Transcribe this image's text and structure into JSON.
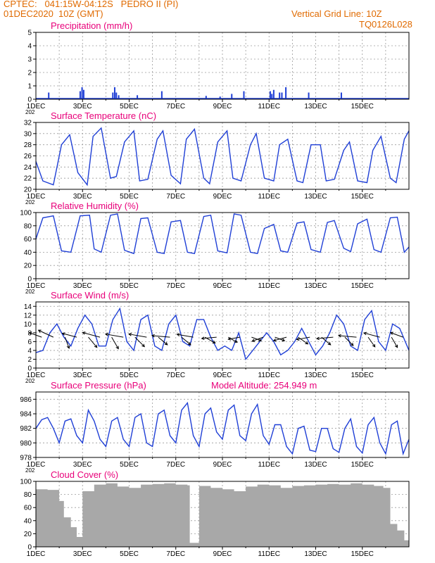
{
  "header": {
    "line1": "CPTEC:   041:15W-04:12S   PEDRO II (PI)",
    "line2": "01DEC2020  10Z (GMT)",
    "grid_note": "Vertical Grid Line: 10Z",
    "code": "TQ0126L028"
  },
  "model_altitude": "Model Altitude: 254.949  m",
  "colors": {
    "header": "#e06a00",
    "title": "#e8007a",
    "series": "#1f3fd6",
    "cloud": "#a8a8a8",
    "arrow": "#000000"
  },
  "x_ticks": [
    "1DEC",
    "3DEC",
    "5DEC",
    "7DEC",
    "9DEC",
    "11DEC",
    "13DEC",
    "15DEC"
  ],
  "year_stub": "202",
  "panels": [
    {
      "id": "precip",
      "title": "Precipitation  (mm/h)",
      "y_ticks": [
        0,
        1,
        2,
        3,
        4,
        5
      ],
      "ylim": [
        0,
        5
      ]
    },
    {
      "id": "temp",
      "title": "Surface Temperature  (nC)",
      "y_ticks": [
        20,
        22,
        24,
        26,
        28,
        30,
        32
      ],
      "ylim": [
        20,
        32
      ]
    },
    {
      "id": "rh",
      "title": "Relative Humidity  (%)",
      "y_ticks": [
        0,
        20,
        40,
        60,
        80,
        100
      ],
      "ylim": [
        0,
        100
      ]
    },
    {
      "id": "wind",
      "title": "Surface Wind  (m/s)",
      "y_ticks": [
        0,
        2,
        4,
        6,
        8,
        10,
        12,
        14
      ],
      "ylim": [
        0,
        15
      ]
    },
    {
      "id": "press",
      "title": "Surface Pressure (hPa)",
      "y_ticks": [
        978,
        980,
        982,
        984,
        986
      ],
      "ylim": [
        978,
        987
      ]
    },
    {
      "id": "cloud",
      "title": "Cloud Cover (%)",
      "y_ticks": [
        0,
        20,
        40,
        60,
        80,
        100
      ],
      "ylim": [
        0,
        100
      ]
    }
  ],
  "chart_data": [
    {
      "type": "bar",
      "title": "Precipitation  (mm/h)",
      "x": [
        0.55,
        1.9,
        1.98,
        2.05,
        3.3,
        3.38,
        3.45,
        3.55,
        4.35,
        5.4,
        7.3,
        7.9,
        8.4,
        8.92,
        10.05,
        10.12,
        10.2,
        10.45,
        10.55,
        10.72,
        11.7,
        13.1
      ],
      "values": [
        0.5,
        0.6,
        0.9,
        0.7,
        0.5,
        0.9,
        0.5,
        0.3,
        0.3,
        0.6,
        0.25,
        0.2,
        0.4,
        0.6,
        0.6,
        0.4,
        0.7,
        0.5,
        0.5,
        0.9,
        0.5,
        0.5
      ],
      "ylim": [
        0,
        5
      ]
    },
    {
      "type": "line",
      "title": "Surface Temperature  (nC)",
      "x": [
        0,
        0.3,
        0.75,
        1.1,
        1.45,
        1.8,
        2.2,
        2.45,
        2.8,
        3.2,
        3.45,
        3.8,
        4.2,
        4.45,
        4.8,
        5.2,
        5.45,
        5.8,
        6.2,
        6.45,
        6.8,
        7.2,
        7.45,
        7.8,
        8.2,
        8.45,
        8.8,
        9.2,
        9.45,
        9.8,
        10.2,
        10.45,
        10.8,
        11.2,
        11.45,
        11.8,
        12.2,
        12.45,
        12.8,
        13.2,
        13.45,
        13.8,
        14.2,
        14.45,
        14.8,
        15.2,
        15.45,
        15.8,
        16
      ],
      "values": [
        25,
        21.5,
        20.8,
        28,
        29.8,
        23,
        20.8,
        29.5,
        31,
        22,
        22.3,
        28.5,
        30.5,
        21.5,
        21.8,
        29,
        30.5,
        22.5,
        21,
        29,
        30.8,
        22,
        21,
        28.5,
        30.5,
        22,
        21.5,
        28,
        30,
        22,
        21.5,
        28,
        29,
        21.5,
        21.2,
        28,
        28,
        21.5,
        21.8,
        27,
        28.5,
        21.5,
        21.2,
        27,
        29.5,
        22,
        21.2,
        29,
        30.5
      ],
      "ylim": [
        20,
        32
      ]
    },
    {
      "type": "line",
      "title": "Relative Humidity  (%)",
      "x": [
        0,
        0.3,
        0.75,
        1.1,
        1.5,
        1.9,
        2.3,
        2.5,
        2.8,
        3.2,
        3.5,
        3.8,
        4.2,
        4.5,
        4.8,
        5.2,
        5.5,
        5.8,
        6.2,
        6.5,
        6.8,
        7.2,
        7.5,
        7.8,
        8.2,
        8.5,
        8.8,
        9.2,
        9.5,
        9.8,
        10.2,
        10.5,
        10.8,
        11.2,
        11.5,
        11.8,
        12.2,
        12.5,
        12.8,
        13.2,
        13.5,
        13.8,
        14.2,
        14.5,
        14.8,
        15.2,
        15.5,
        15.8,
        16
      ],
      "values": [
        60,
        92,
        95,
        42,
        40,
        95,
        96,
        45,
        40,
        96,
        98,
        43,
        38,
        91,
        92,
        40,
        38,
        86,
        88,
        40,
        38,
        94,
        96,
        42,
        39,
        98,
        96,
        40,
        38,
        76,
        82,
        42,
        40,
        84,
        86,
        44,
        40,
        85,
        88,
        46,
        41,
        83,
        90,
        44,
        40,
        92,
        93,
        40,
        48
      ],
      "ylim": [
        0,
        100
      ]
    },
    {
      "type": "line",
      "title": "Surface Wind  (m/s)",
      "x": [
        0,
        0.3,
        0.6,
        0.9,
        1.2,
        1.5,
        1.8,
        2.1,
        2.4,
        2.7,
        3.0,
        3.3,
        3.6,
        3.9,
        4.2,
        4.5,
        4.8,
        5.1,
        5.4,
        5.7,
        6.0,
        6.3,
        6.6,
        6.9,
        7.2,
        7.5,
        7.8,
        8.1,
        8.4,
        8.7,
        9.0,
        9.3,
        9.6,
        9.9,
        10.2,
        10.5,
        10.8,
        11.1,
        11.4,
        11.7,
        12.0,
        12.3,
        12.6,
        12.9,
        13.2,
        13.5,
        13.8,
        14.1,
        14.4,
        14.7,
        15.0,
        15.3,
        15.6,
        16
      ],
      "values": [
        3.5,
        4,
        8,
        10,
        7,
        5,
        9,
        12,
        10,
        5,
        5,
        11,
        13.5,
        6,
        4,
        11,
        12,
        5,
        4,
        10,
        12,
        6,
        5,
        11,
        11,
        7,
        4,
        5,
        4,
        8,
        2,
        4,
        6,
        8,
        6,
        3,
        4,
        6,
        9,
        6,
        3,
        5,
        8,
        12,
        10,
        5,
        4,
        11,
        13,
        6,
        4,
        10,
        9,
        4
      ],
      "ylim": [
        0,
        15
      ],
      "arrows": [
        {
          "x": 0.25,
          "dir_deg": 70,
          "speed": 5
        },
        {
          "x": 0.75,
          "dir_deg": 65,
          "speed": 7
        },
        {
          "x": 1.25,
          "dir_deg": 200,
          "speed": 4
        },
        {
          "x": 1.75,
          "dir_deg": 75,
          "speed": 6
        },
        {
          "x": 2.25,
          "dir_deg": 220,
          "speed": 5
        },
        {
          "x": 2.75,
          "dir_deg": 75,
          "speed": 8
        },
        {
          "x": 3.25,
          "dir_deg": 210,
          "speed": 5
        },
        {
          "x": 3.75,
          "dir_deg": 80,
          "speed": 8
        },
        {
          "x": 4.25,
          "dir_deg": 225,
          "speed": 5
        },
        {
          "x": 4.75,
          "dir_deg": 80,
          "speed": 8
        },
        {
          "x": 5.25,
          "dir_deg": 230,
          "speed": 4
        },
        {
          "x": 5.75,
          "dir_deg": 85,
          "speed": 8
        },
        {
          "x": 6.25,
          "dir_deg": 230,
          "speed": 4
        },
        {
          "x": 6.75,
          "dir_deg": 80,
          "speed": 7
        },
        {
          "x": 7.25,
          "dir_deg": 240,
          "speed": 4
        },
        {
          "x": 7.75,
          "dir_deg": 95,
          "speed": 6
        },
        {
          "x": 8.25,
          "dir_deg": 240,
          "speed": 3
        },
        {
          "x": 8.75,
          "dir_deg": 100,
          "speed": 4
        },
        {
          "x": 9.25,
          "dir_deg": 250,
          "speed": 3
        },
        {
          "x": 9.75,
          "dir_deg": 110,
          "speed": 4
        },
        {
          "x": 10.25,
          "dir_deg": 250,
          "speed": 3
        },
        {
          "x": 10.75,
          "dir_deg": 105,
          "speed": 5
        },
        {
          "x": 11.25,
          "dir_deg": 235,
          "speed": 4
        },
        {
          "x": 11.75,
          "dir_deg": 100,
          "speed": 5
        },
        {
          "x": 12.25,
          "dir_deg": 230,
          "speed": 4
        },
        {
          "x": 12.75,
          "dir_deg": 95,
          "speed": 7
        },
        {
          "x": 13.25,
          "dir_deg": 225,
          "speed": 4
        },
        {
          "x": 13.75,
          "dir_deg": 85,
          "speed": 8
        },
        {
          "x": 14.25,
          "dir_deg": 215,
          "speed": 4
        },
        {
          "x": 14.75,
          "dir_deg": 75,
          "speed": 7
        },
        {
          "x": 15.25,
          "dir_deg": 210,
          "speed": 4
        },
        {
          "x": 15.75,
          "dir_deg": 70,
          "speed": 5
        }
      ]
    },
    {
      "type": "line",
      "title": "Surface Pressure (hPa)",
      "x": [
        0,
        0.25,
        0.5,
        0.75,
        1.0,
        1.25,
        1.5,
        1.75,
        2.0,
        2.25,
        2.5,
        2.75,
        3.0,
        3.25,
        3.5,
        3.75,
        4.0,
        4.25,
        4.5,
        4.75,
        5.0,
        5.25,
        5.5,
        5.75,
        6.0,
        6.25,
        6.5,
        6.75,
        7.0,
        7.25,
        7.5,
        7.75,
        8.0,
        8.25,
        8.5,
        8.75,
        9.0,
        9.25,
        9.5,
        9.75,
        10.0,
        10.25,
        10.5,
        10.75,
        11.0,
        11.25,
        11.5,
        11.75,
        12.0,
        12.25,
        12.5,
        12.75,
        13.0,
        13.25,
        13.5,
        13.75,
        14.0,
        14.25,
        14.5,
        14.75,
        15.0,
        15.25,
        15.5,
        15.75,
        16
      ],
      "values": [
        982,
        983.2,
        983.5,
        982,
        980,
        983,
        983.3,
        981,
        980,
        984.5,
        983,
        980.5,
        979.5,
        983,
        983.5,
        980.5,
        979.5,
        983.5,
        984,
        980,
        979.5,
        984,
        984.5,
        981,
        980,
        984.5,
        985.5,
        981,
        979.5,
        984,
        984.8,
        981.5,
        980.5,
        984.5,
        985.2,
        981,
        980.3,
        984,
        985.3,
        981,
        979.8,
        982.5,
        982.5,
        979.5,
        978.5,
        982,
        982.3,
        979,
        978.8,
        982,
        982,
        979.2,
        978.7,
        982,
        983.3,
        979.5,
        978.6,
        982.5,
        983.5,
        980,
        978.5,
        982.5,
        983,
        978.5,
        980.5
      ],
      "ylim": [
        978,
        987
      ]
    },
    {
      "type": "bar",
      "title": "Cloud Cover (%)",
      "x": [
        0,
        0.5,
        1.0,
        1.2,
        1.5,
        1.75,
        2.0,
        2.5,
        3.0,
        3.5,
        4.0,
        4.5,
        5.0,
        5.5,
        6.0,
        6.5,
        6.6,
        7.0,
        7.5,
        8.0,
        8.5,
        9.0,
        9.5,
        10.0,
        10.5,
        11.0,
        11.5,
        12.0,
        12.5,
        13.0,
        13.5,
        14.0,
        14.5,
        14.9,
        15.2,
        15.5,
        15.8,
        16
      ],
      "values": [
        88,
        87,
        70,
        45,
        30,
        15,
        85,
        95,
        97,
        92,
        90,
        95,
        96,
        97,
        95,
        94,
        6,
        93,
        90,
        88,
        85,
        92,
        95,
        94,
        90,
        93,
        94,
        95,
        96,
        95,
        97,
        95,
        93,
        90,
        35,
        25,
        10,
        60
      ],
      "ylim": [
        0,
        100
      ]
    }
  ]
}
